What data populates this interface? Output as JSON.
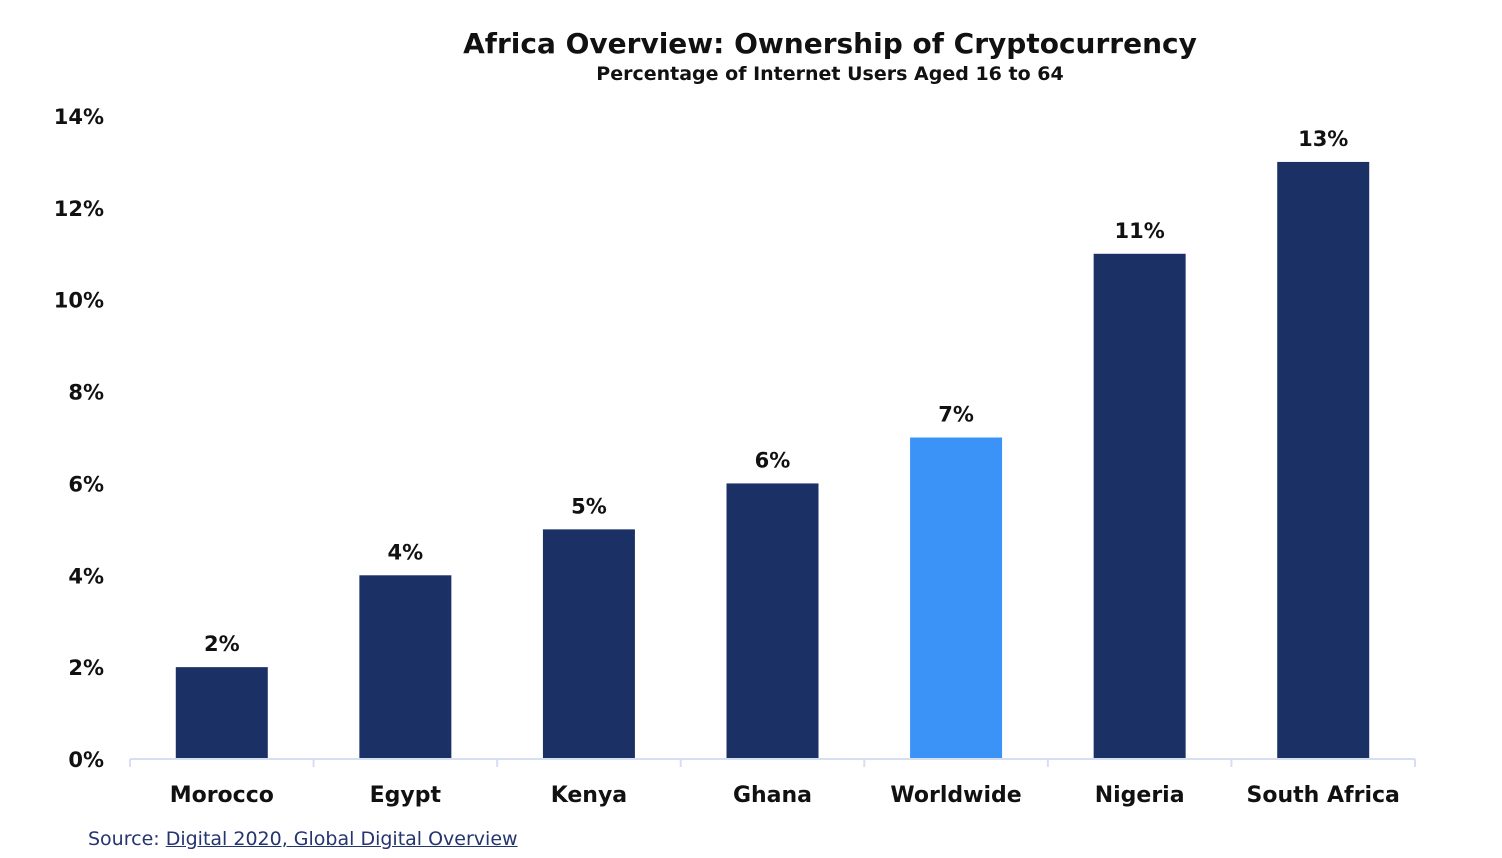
{
  "chart_data": {
    "type": "bar",
    "title": "Africa Overview: Ownership of Cryptocurrency",
    "subtitle": "Percentage of Internet Users Aged 16 to 64",
    "categories": [
      "Morocco",
      "Egypt",
      "Kenya",
      "Ghana",
      "Worldwide",
      "Nigeria",
      "South Africa"
    ],
    "values": [
      2,
      4,
      5,
      6,
      7,
      11,
      13
    ],
    "data_labels": [
      "2%",
      "4%",
      "5%",
      "6%",
      "7%",
      "11%",
      "13%"
    ],
    "ylim": [
      0,
      14
    ],
    "yticks": [
      0,
      2,
      4,
      6,
      8,
      10,
      12,
      14
    ],
    "ytick_labels": [
      "0%",
      "2%",
      "4%",
      "6%",
      "8%",
      "10%",
      "12%",
      "14%"
    ],
    "grid": false,
    "legend": "none",
    "colors": {
      "default_bar": "#1b3166",
      "highlight_bar": "#3b93f7",
      "highlight_category": "Worldwide",
      "axis": "#d6dff2"
    }
  },
  "source": {
    "prefix": "Source: ",
    "link_text": "Digital 2020, Global Digital Overview"
  }
}
